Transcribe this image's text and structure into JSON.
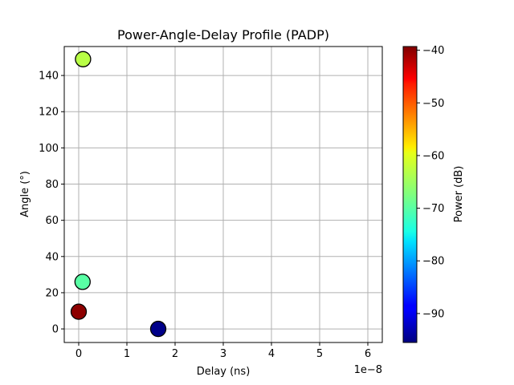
{
  "chart_data": {
    "type": "scatter",
    "title": "Power-Angle-Delay Profile (PADP)",
    "xlabel": "Delay (ns)",
    "ylabel": "Angle (°)",
    "x_offset_label": "1e−8",
    "xlim": [
      -3e-09,
      6.3e-08
    ],
    "ylim": [
      -7.5,
      156
    ],
    "x_ticks": [
      0,
      1e-08,
      2e-08,
      3e-08,
      4e-08,
      5e-08,
      6e-08
    ],
    "x_tick_labels": [
      "0",
      "1",
      "2",
      "3",
      "4",
      "5",
      "6"
    ],
    "y_ticks": [
      0,
      20,
      40,
      60,
      80,
      100,
      120,
      140
    ],
    "y_tick_labels": [
      "0",
      "20",
      "40",
      "60",
      "80",
      "100",
      "120",
      "140"
    ],
    "grid": true,
    "colormap": "jet",
    "points": [
      {
        "delay": 0.0,
        "angle": 9.5,
        "power_db": -40.0
      },
      {
        "delay": 8e-10,
        "angle": 26.0,
        "power_db": -70.0
      },
      {
        "delay": 9e-10,
        "angle": 149.0,
        "power_db": -63.0
      },
      {
        "delay": 1.65e-08,
        "angle": 0.0,
        "power_db": -95.0
      }
    ],
    "colorbar": {
      "label": "Power (dB)",
      "range": [
        -95.5,
        -39.3
      ],
      "ticks": [
        -40,
        -50,
        -60,
        -70,
        -80,
        -90
      ],
      "tick_labels": [
        "−40",
        "−50",
        "−60",
        "−70",
        "−80",
        "−90"
      ]
    }
  }
}
